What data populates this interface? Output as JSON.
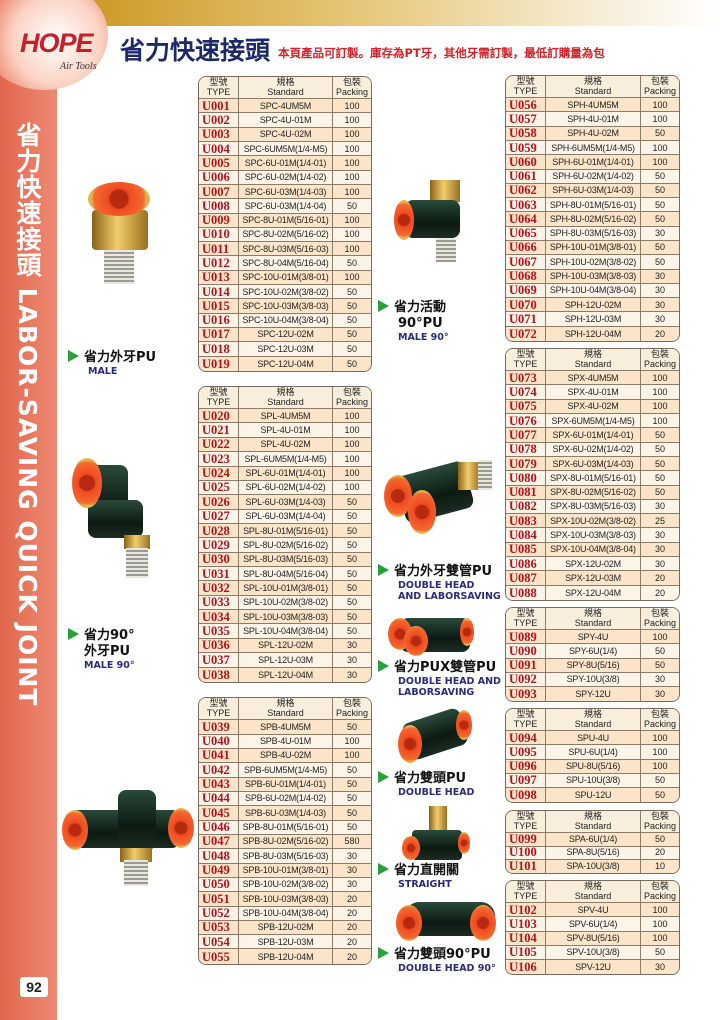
{
  "brand": {
    "logo": "HOPE",
    "sub": "Air Tools"
  },
  "header": {
    "title": "省力快速接頭",
    "note": "本頁產品可訂製。庫存為PT牙，其他牙需訂製，最低訂購量為包"
  },
  "sidebar": {
    "text": "省力快速接頭 LABOR-SAVING QUICK JOINT",
    "page": "92"
  },
  "colors": {
    "sidebar": "#e8735a",
    "title": "#1b2a6b",
    "note": "#d0232b",
    "type": "#b3121c",
    "arrow": "#2aa03a"
  },
  "table_header": {
    "type_zh": "型號",
    "type_en": "TYPE",
    "std_zh": "規格",
    "std_en": "Standard",
    "pack_zh": "包裝",
    "pack_en": "Packing"
  },
  "labels": [
    {
      "zh": "省力外牙PU",
      "en": "MALE"
    },
    {
      "zh": "省力90°",
      "zh2": "外牙PU",
      "en": "MALE 90°"
    },
    {
      "zh": "省力活動",
      "zh2": "90°PU",
      "en": "MALE 90°"
    },
    {
      "zh": "省力外牙雙管PU",
      "en": "DOUBLE HEAD",
      "en2": "AND LABORSAVING"
    },
    {
      "zh": "省力PUX雙管PU",
      "en": "DOUBLE HEAD AND",
      "en2": "LABORSAVING"
    },
    {
      "zh": "省力雙頭PU",
      "en": "DOUBLE HEAD"
    },
    {
      "zh": "省力直開關",
      "en": "STRAIGHT"
    },
    {
      "zh": "省力雙頭90°PU",
      "en": "DOUBLE HEAD 90°"
    }
  ],
  "tables": [
    {
      "rows": [
        [
          "U001",
          "SPC-4UM5M",
          "100"
        ],
        [
          "U002",
          "SPC-4U-01M",
          "100"
        ],
        [
          "U003",
          "SPC-4U-02M",
          "100"
        ],
        [
          "U004",
          "SPC-6UM5M(1/4-M5)",
          "100"
        ],
        [
          "U005",
          "SPC-6U-01M(1/4-01)",
          "100"
        ],
        [
          "U006",
          "SPC-6U-02M(1/4-02)",
          "100"
        ],
        [
          "U007",
          "SPC-6U-03M(1/4-03)",
          "100"
        ],
        [
          "U008",
          "SPC-6U-03M(1/4-04)",
          "50"
        ],
        [
          "U009",
          "SPC-8U-01M(5/16-01)",
          "100"
        ],
        [
          "U010",
          "SPC-8U-02M(5/16-02)",
          "100"
        ],
        [
          "U011",
          "SPC-8U-03M(5/16-03)",
          "100"
        ],
        [
          "U012",
          "SPC-8U-04M(5/16-04)",
          "50"
        ],
        [
          "U013",
          "SPC-10U-01M(3/8-01)",
          "100"
        ],
        [
          "U014",
          "SPC-10U-02M(3/8-02)",
          "50"
        ],
        [
          "U015",
          "SPC-10U-03M(3/8-03)",
          "50"
        ],
        [
          "U016",
          "SPC-10U-04M(3/8-04)",
          "50"
        ],
        [
          "U017",
          "SPC-12U-02M",
          "50"
        ],
        [
          "U018",
          "SPC-12U-03M",
          "50"
        ],
        [
          "U019",
          "SPC-12U-04M",
          "50"
        ]
      ]
    },
    {
      "rows": [
        [
          "U020",
          "SPL-4UM5M",
          "100"
        ],
        [
          "U021",
          "SPL-4U-01M",
          "100"
        ],
        [
          "U022",
          "SPL-4U-02M",
          "100"
        ],
        [
          "U023",
          "SPL-6UM5M(1/4-M5)",
          "100"
        ],
        [
          "U024",
          "SPL-6U-01M(1/4-01)",
          "100"
        ],
        [
          "U025",
          "SPL-6U-02M(1/4-02)",
          "100"
        ],
        [
          "U026",
          "SPL-6U-03M(1/4-03)",
          "50"
        ],
        [
          "U027",
          "SPL-6U-03M(1/4-04)",
          "50"
        ],
        [
          "U028",
          "SPL-8U-01M(5/16-01)",
          "50"
        ],
        [
          "U029",
          "SPL-8U-02M(5/16-02)",
          "50"
        ],
        [
          "U030",
          "SPL-8U-03M(5/16-03)",
          "50"
        ],
        [
          "U031",
          "SPL-8U-04M(5/16-04)",
          "50"
        ],
        [
          "U032",
          "SPL-10U-01M(3/8-01)",
          "50"
        ],
        [
          "U033",
          "SPL-10U-02M(3/8-02)",
          "50"
        ],
        [
          "U034",
          "SPL-10U-03M(3/8-03)",
          "50"
        ],
        [
          "U035",
          "SPL-10U-04M(3/8-04)",
          "50"
        ],
        [
          "U036",
          "SPL-12U-02M",
          "30"
        ],
        [
          "U037",
          "SPL-12U-03M",
          "30"
        ],
        [
          "U038",
          "SPL-12U-04M",
          "30"
        ]
      ]
    },
    {
      "rows": [
        [
          "U039",
          "SPB-4UM5M",
          "50"
        ],
        [
          "U040",
          "SPB-4U-01M",
          "100"
        ],
        [
          "U041",
          "SPB-4U-02M",
          "100"
        ],
        [
          "U042",
          "SPB-6UM5M(1/4-M5)",
          "50"
        ],
        [
          "U043",
          "SPB-6U-01M(1/4-01)",
          "50"
        ],
        [
          "U044",
          "SPB-6U-02M(1/4-02)",
          "50"
        ],
        [
          "U045",
          "SPB-6U-03M(1/4-03)",
          "50"
        ],
        [
          "U046",
          "SPB-8U-01M(5/16-01)",
          "50"
        ],
        [
          "U047",
          "SPB-8U-02M(5/16-02)",
          "580"
        ],
        [
          "U048",
          "SPB-8U-03M(5/16-03)",
          "30"
        ],
        [
          "U049",
          "SPB-10U-01M(3/8-01)",
          "30"
        ],
        [
          "U050",
          "SPB-10U-02M(3/8-02)",
          "30"
        ],
        [
          "U051",
          "SPB-10U-03M(3/8-03)",
          "20"
        ],
        [
          "U052",
          "SPB-10U-04M(3/8-04)",
          "20"
        ],
        [
          "U053",
          "SPB-12U-02M",
          "20"
        ],
        [
          "U054",
          "SPB-12U-03M",
          "20"
        ],
        [
          "U055",
          "SPB-12U-04M",
          "20"
        ]
      ]
    },
    {
      "rows": [
        [
          "U056",
          "SPH-4UM5M",
          "100"
        ],
        [
          "U057",
          "SPH-4U-01M",
          "100"
        ],
        [
          "U058",
          "SPH-4U-02M",
          "50"
        ],
        [
          "U059",
          "SPH-6UM5M(1/4-M5)",
          "100"
        ],
        [
          "U060",
          "SPH-6U-01M(1/4-01)",
          "100"
        ],
        [
          "U061",
          "SPH-6U-02M(1/4-02)",
          "50"
        ],
        [
          "U062",
          "SPH-6U-03M(1/4-03)",
          "50"
        ],
        [
          "U063",
          "SPH-8U-01M(5/16-01)",
          "50"
        ],
        [
          "U064",
          "SPH-8U-02M(5/16-02)",
          "50"
        ],
        [
          "U065",
          "SPH-8U-03M(5/16-03)",
          "30"
        ],
        [
          "U066",
          "SPH-10U-01M(3/8-01)",
          "50"
        ],
        [
          "U067",
          "SPH-10U-02M(3/8-02)",
          "50"
        ],
        [
          "U068",
          "SPH-10U-03M(3/8-03)",
          "30"
        ],
        [
          "U069",
          "SPH-10U-04M(3/8-04)",
          "30"
        ],
        [
          "U070",
          "SPH-12U-02M",
          "30"
        ],
        [
          "U071",
          "SPH-12U-03M",
          "30"
        ],
        [
          "U072",
          "SPH-12U-04M",
          "20"
        ]
      ]
    },
    {
      "rows": [
        [
          "U073",
          "SPX-4UM5M",
          "100"
        ],
        [
          "U074",
          "SPX-4U-01M",
          "100"
        ],
        [
          "U075",
          "SPX-4U-02M",
          "100"
        ],
        [
          "U076",
          "SPX-6UM5M(1/4-M5)",
          "100"
        ],
        [
          "U077",
          "SPX-6U-01M(1/4-01)",
          "50"
        ],
        [
          "U078",
          "SPX-6U-02M(1/4-02)",
          "50"
        ],
        [
          "U079",
          "SPX-6U-03M(1/4-03)",
          "50"
        ],
        [
          "U080",
          "SPX-8U-01M(5/16-01)",
          "50"
        ],
        [
          "U081",
          "SPX-8U-02M(5/16-02)",
          "50"
        ],
        [
          "U082",
          "SPX-8U-03M(5/16-03)",
          "30"
        ],
        [
          "U083",
          "SPX-10U-02M(3/8-02)",
          "25"
        ],
        [
          "U084",
          "SPX-10U-03M(3/8-03)",
          "30"
        ],
        [
          "U085",
          "SPX-10U-04M(3/8-04)",
          "30"
        ],
        [
          "U086",
          "SPX-12U-02M",
          "30"
        ],
        [
          "U087",
          "SPX-12U-03M",
          "20"
        ],
        [
          "U088",
          "SPX-12U-04M",
          "20"
        ]
      ]
    },
    {
      "rows": [
        [
          "U089",
          "SPY-4U",
          "100"
        ],
        [
          "U090",
          "SPY-6U(1/4)",
          "50"
        ],
        [
          "U091",
          "SPY-8U(5/16)",
          "50"
        ],
        [
          "U092",
          "SPY-10U(3/8)",
          "30"
        ],
        [
          "U093",
          "SPY-12U",
          "30"
        ]
      ]
    },
    {
      "rows": [
        [
          "U094",
          "SPU-4U",
          "100"
        ],
        [
          "U095",
          "SPU-6U(1/4)",
          "100"
        ],
        [
          "U096",
          "SPU-8U(5/16)",
          "100"
        ],
        [
          "U097",
          "SPU-10U(3/8)",
          "50"
        ],
        [
          "U098",
          "SPU-12U",
          "50"
        ]
      ]
    },
    {
      "rows": [
        [
          "U099",
          "SPA-6U(1/4)",
          "50"
        ],
        [
          "U100",
          "SPA-8U(5/16)",
          "20"
        ],
        [
          "U101",
          "SPA-10U(3/8)",
          "10"
        ]
      ]
    },
    {
      "rows": [
        [
          "U102",
          "SPV-4U",
          "100"
        ],
        [
          "U103",
          "SPV-6U(1/4)",
          "100"
        ],
        [
          "U104",
          "SPV-8U(5/16)",
          "100"
        ],
        [
          "U105",
          "SPV-10U(3/8)",
          "50"
        ],
        [
          "U106",
          "SPV-12U",
          "30"
        ]
      ]
    }
  ]
}
